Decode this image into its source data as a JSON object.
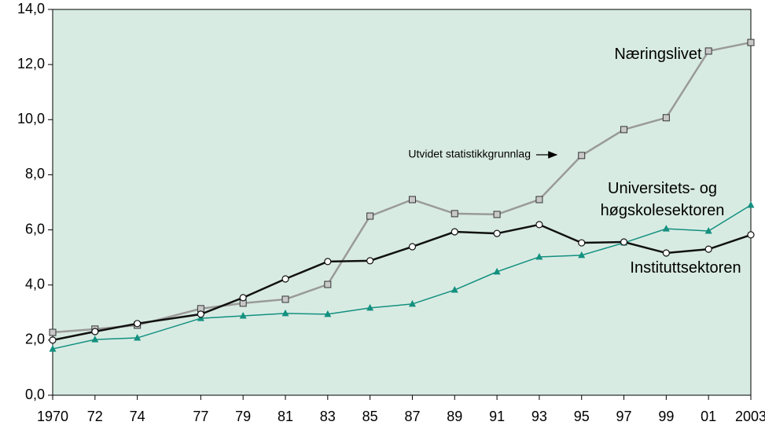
{
  "chart_data": {
    "type": "line",
    "x": [
      1970,
      1972,
      1974,
      1977,
      1979,
      1981,
      1983,
      1985,
      1987,
      1989,
      1991,
      1993,
      1995,
      1997,
      1999,
      2001,
      2003
    ],
    "series": [
      {
        "name": "Næringslivet",
        "color": "#9a9a9a",
        "marker": "square",
        "values": [
          2.28,
          2.4,
          2.54,
          3.14,
          3.34,
          3.48,
          4.02,
          6.5,
          7.1,
          6.59,
          6.56,
          7.1,
          8.7,
          9.64,
          10.07,
          12.49,
          12.8
        ]
      },
      {
        "name": "Universitets- og høgskolesektoren",
        "color": "#13907f",
        "marker": "triangle",
        "values": [
          1.68,
          2.02,
          2.08,
          2.79,
          2.88,
          2.97,
          2.94,
          3.17,
          3.31,
          3.82,
          4.48,
          5.02,
          5.08,
          5.53,
          6.04,
          5.96,
          6.9
        ]
      },
      {
        "name": "Instituttsektoren",
        "color": "#111111",
        "marker": "circle",
        "values": [
          2.0,
          2.31,
          2.6,
          2.94,
          3.54,
          4.22,
          4.85,
          4.88,
          5.39,
          5.93,
          5.87,
          6.19,
          5.53,
          5.56,
          5.16,
          5.3,
          5.82
        ]
      }
    ],
    "annotation": "Utvidet statistikkgrunnlag",
    "xlim": [
      1970,
      2003
    ],
    "xticks": [
      {
        "value": 1970,
        "label": "1970"
      },
      {
        "value": 1972,
        "label": "72"
      },
      {
        "value": 1974,
        "label": "74"
      },
      {
        "value": 1977,
        "label": "77"
      },
      {
        "value": 1979,
        "label": "79"
      },
      {
        "value": 1981,
        "label": "81"
      },
      {
        "value": 1983,
        "label": "83"
      },
      {
        "value": 1985,
        "label": "85"
      },
      {
        "value": 1987,
        "label": "87"
      },
      {
        "value": 1989,
        "label": "89"
      },
      {
        "value": 1991,
        "label": "91"
      },
      {
        "value": 1993,
        "label": "93"
      },
      {
        "value": 1995,
        "label": "95"
      },
      {
        "value": 1997,
        "label": "97"
      },
      {
        "value": 1999,
        "label": "99"
      },
      {
        "value": 2001,
        "label": "01"
      },
      {
        "value": 2003,
        "label": "2003"
      }
    ],
    "ylim": [
      0,
      14
    ],
    "yticks": [
      {
        "value": 0,
        "label": "0,0"
      },
      {
        "value": 2,
        "label": "2,0"
      },
      {
        "value": 4,
        "label": "4,0"
      },
      {
        "value": 6,
        "label": "6,0"
      },
      {
        "value": 8,
        "label": "8,0"
      },
      {
        "value": 10,
        "label": "10,0"
      },
      {
        "value": 12,
        "label": "12,0"
      },
      {
        "value": 14,
        "label": "14,0"
      }
    ],
    "background": "#d8ebe3"
  }
}
